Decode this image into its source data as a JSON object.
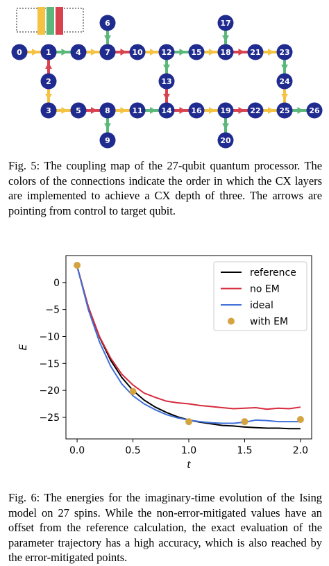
{
  "figure5": {
    "nodes": [
      "0",
      "1",
      "2",
      "3",
      "4",
      "5",
      "6",
      "7",
      "8",
      "9",
      "10",
      "11",
      "12",
      "13",
      "14",
      "15",
      "16",
      "17",
      "18",
      "19",
      "20",
      "21",
      "22",
      "23",
      "24",
      "25",
      "26"
    ],
    "caption": "Fig. 5: The coupling map of the 27-qubit quantum processor. The colors of the connections indicate the order in which the CX layers are implemented to achieve a CX depth of three. The arrows are pointing from control to target qubit."
  },
  "chart_data": {
    "type": "line",
    "x_label": "t",
    "y_label": "E",
    "xlim": [
      -0.1,
      2.1
    ],
    "ylim": [
      -29,
      5
    ],
    "xticks": [
      {
        "value": 0,
        "label": "0.0"
      },
      0.5,
      {
        "value": 1,
        "label": "1.0"
      },
      1.5,
      {
        "value": 2,
        "label": "2.0"
      }
    ],
    "yticks": [
      0,
      {
        "value": -5,
        "label": "−5"
      },
      {
        "value": -10,
        "label": "−10"
      },
      {
        "value": -15,
        "label": "−15"
      },
      {
        "value": -20,
        "label": "−20"
      },
      {
        "value": -25,
        "label": "−25"
      }
    ],
    "legend": "upper right",
    "series": [
      {
        "name": "reference",
        "color": "#000000",
        "mode": "line",
        "x": [
          0,
          0.1,
          0.2,
          0.3,
          0.4,
          0.5,
          0.6,
          0.7,
          0.8,
          0.9,
          1,
          1.1,
          1.2,
          1.3,
          1.4,
          1.5,
          1.6,
          1.7,
          1.8,
          1.9,
          2
        ],
        "values": [
          3,
          -4.5,
          -10.1,
          -14.4,
          -17.6,
          -20,
          -21.8,
          -23.1,
          -24.1,
          -24.9,
          -25.5,
          -25.9,
          -26.2,
          -26.5,
          -26.6,
          -26.8,
          -26.9,
          -27,
          -27,
          -27.1,
          -27.1
        ]
      },
      {
        "name": "no EM",
        "color": "#d62a3c",
        "mode": "line",
        "x": [
          0,
          0.1,
          0.2,
          0.3,
          0.4,
          0.5,
          0.6,
          0.7,
          0.8,
          0.9,
          1,
          1.1,
          1.2,
          1.3,
          1.4,
          1.5,
          1.6,
          1.7,
          1.8,
          1.9,
          2
        ],
        "values": [
          3,
          -4.5,
          -10,
          -14,
          -17,
          -19,
          -20.5,
          -21.3,
          -22,
          -22.3,
          -22.5,
          -22.8,
          -23,
          -23.2,
          -23.4,
          -23.3,
          -23.2,
          -23.5,
          -23.3,
          -23.4,
          -23.1
        ]
      },
      {
        "name": "ideal",
        "color": "#3e6fd8",
        "mode": "line",
        "x": [
          0,
          0.1,
          0.2,
          0.3,
          0.4,
          0.5,
          0.6,
          0.7,
          0.8,
          0.9,
          1,
          1.1,
          1.2,
          1.3,
          1.4,
          1.5,
          1.6,
          1.7,
          1.8,
          1.9,
          2
        ],
        "values": [
          3,
          -5,
          -11,
          -15.5,
          -18.8,
          -21,
          -22.5,
          -23.6,
          -24.5,
          -25.1,
          -25.5,
          -25.8,
          -26,
          -26.1,
          -26.1,
          -25.9,
          -25.5,
          -25.6,
          -25.8,
          -25.8,
          -25.8
        ]
      },
      {
        "name": "with EM",
        "color": "#d4a441",
        "mode": "marker",
        "x": [
          0,
          0.5,
          1,
          1.5,
          2
        ],
        "values": [
          3.2,
          -20.2,
          -25.8,
          -25.8,
          -25.4
        ]
      }
    ]
  },
  "figure6_caption": "Fig. 6: The energies for the imaginary-time evolution of the Ising model on 27 spins. While the non-error-mitigated values have an offset from the reference calculation, the exact evaluation of the parameter trajectory has a high accuracy, which is also reached by the error-mitigated points."
}
